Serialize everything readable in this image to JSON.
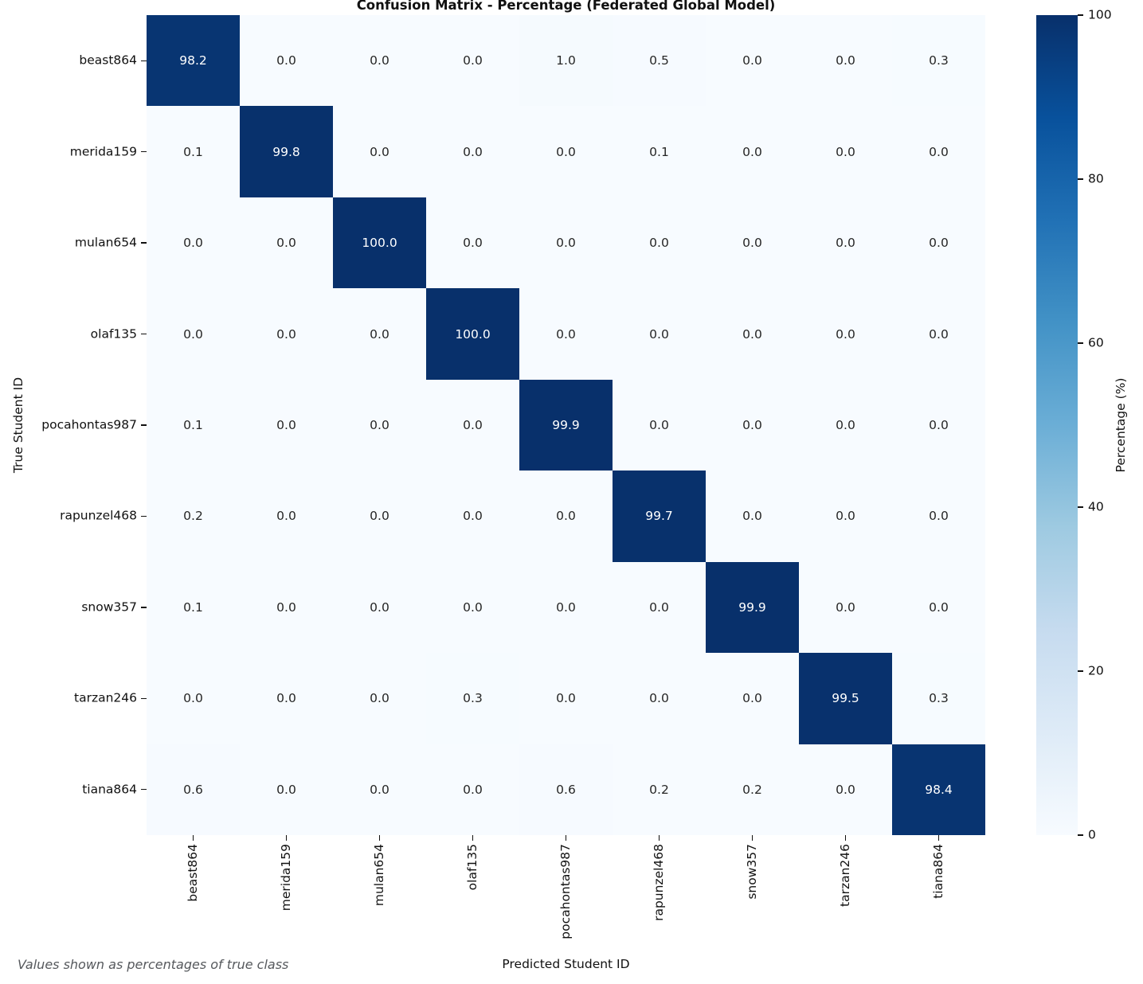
{
  "chart_data": {
    "type": "heatmap",
    "title": "Confusion Matrix - Percentage (Federated Global Model)",
    "xlabel": "Predicted Student ID",
    "ylabel": "True Student ID",
    "footnote": "Values shown as percentages of true class",
    "categories": [
      "beast864",
      "merida159",
      "mulan654",
      "olaf135",
      "pocahontas987",
      "rapunzel468",
      "snow357",
      "tarzan246",
      "tiana864"
    ],
    "rows": [
      {
        "label": "beast864",
        "values": [
          98.2,
          0.0,
          0.0,
          0.0,
          1.0,
          0.5,
          0.0,
          0.0,
          0.3
        ]
      },
      {
        "label": "merida159",
        "values": [
          0.1,
          99.8,
          0.0,
          0.0,
          0.0,
          0.1,
          0.0,
          0.0,
          0.0
        ]
      },
      {
        "label": "mulan654",
        "values": [
          0.0,
          0.0,
          100.0,
          0.0,
          0.0,
          0.0,
          0.0,
          0.0,
          0.0
        ]
      },
      {
        "label": "olaf135",
        "values": [
          0.0,
          0.0,
          0.0,
          100.0,
          0.0,
          0.0,
          0.0,
          0.0,
          0.0
        ]
      },
      {
        "label": "pocahontas987",
        "values": [
          0.1,
          0.0,
          0.0,
          0.0,
          99.9,
          0.0,
          0.0,
          0.0,
          0.0
        ]
      },
      {
        "label": "rapunzel468",
        "values": [
          0.2,
          0.0,
          0.0,
          0.0,
          0.0,
          99.7,
          0.0,
          0.0,
          0.0
        ]
      },
      {
        "label": "snow357",
        "values": [
          0.1,
          0.0,
          0.0,
          0.0,
          0.0,
          0.0,
          99.9,
          0.0,
          0.0
        ]
      },
      {
        "label": "tarzan246",
        "values": [
          0.0,
          0.0,
          0.0,
          0.3,
          0.0,
          0.0,
          0.0,
          99.5,
          0.3
        ]
      },
      {
        "label": "tiana864",
        "values": [
          0.6,
          0.0,
          0.0,
          0.0,
          0.6,
          0.2,
          0.2,
          0.0,
          98.4
        ]
      }
    ],
    "value_format": "one_decimal",
    "value_range": [
      0,
      100
    ],
    "colorbar": {
      "label": "Percentage (%)",
      "min": 0,
      "max": 100,
      "ticks": [
        0,
        20,
        40,
        60,
        80,
        100
      ]
    },
    "colormap": {
      "name": "Blues",
      "anchors": [
        {
          "t": 0.0,
          "color": "#f7fbff"
        },
        {
          "t": 0.125,
          "color": "#deebf7"
        },
        {
          "t": 0.25,
          "color": "#c6dbef"
        },
        {
          "t": 0.375,
          "color": "#9ecae1"
        },
        {
          "t": 0.5,
          "color": "#6baed6"
        },
        {
          "t": 0.625,
          "color": "#4292c6"
        },
        {
          "t": 0.75,
          "color": "#2171b5"
        },
        {
          "t": 0.875,
          "color": "#08519c"
        },
        {
          "t": 1.0,
          "color": "#08306b"
        }
      ]
    },
    "annotation_colors": {
      "on_dark": "#ffffff",
      "on_light": "#262626"
    },
    "legend_position": "right",
    "grid": false
  }
}
